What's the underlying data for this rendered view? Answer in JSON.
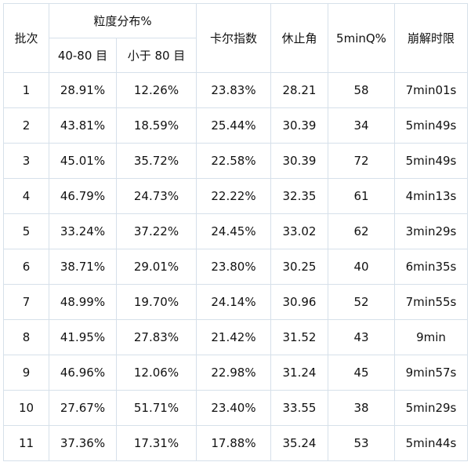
{
  "table": {
    "headers": {
      "batch": "批次",
      "particle_group": "粒度分布%",
      "particle_sub": [
        "40-80 目",
        "小于 80 目"
      ],
      "carr_index": "卡尔指数",
      "angle_of_repose": "休止角",
      "q5min": "5minQ%",
      "disintegration": "崩解时限"
    },
    "rows": [
      [
        "1",
        "28.91%",
        "12.26%",
        "23.83%",
        "28.21",
        "58",
        "7min01s"
      ],
      [
        "2",
        "43.81%",
        "18.59%",
        "25.44%",
        "30.39",
        "34",
        "5min49s"
      ],
      [
        "3",
        "45.01%",
        "35.72%",
        "22.58%",
        "30.39",
        "72",
        "5min49s"
      ],
      [
        "4",
        "46.79%",
        "24.73%",
        "22.22%",
        "32.35",
        "61",
        "4min13s"
      ],
      [
        "5",
        "33.24%",
        "37.22%",
        "24.45%",
        "33.02",
        "62",
        "3min29s"
      ],
      [
        "6",
        "38.71%",
        "29.01%",
        "23.80%",
        "30.25",
        "40",
        "6min35s"
      ],
      [
        "7",
        "48.99%",
        "19.70%",
        "24.14%",
        "30.96",
        "52",
        "7min55s"
      ],
      [
        "8",
        "41.95%",
        "27.83%",
        "21.42%",
        "31.52",
        "43",
        "9min"
      ],
      [
        "9",
        "46.96%",
        "12.06%",
        "22.98%",
        "31.24",
        "45",
        "9min57s"
      ],
      [
        "10",
        "27.67%",
        "51.71%",
        "23.40%",
        "33.55",
        "38",
        "5min29s"
      ],
      [
        "11",
        "37.36%",
        "17.31%",
        "17.88%",
        "35.24",
        "53",
        "5min44s"
      ]
    ]
  }
}
